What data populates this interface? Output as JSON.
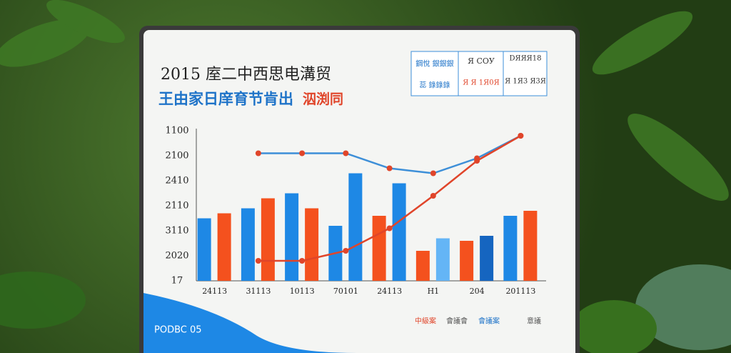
{
  "board": {
    "title": "2015 庢二中西思电溝贸",
    "subtitle_blue": "王由家日庠育节肯出",
    "subtitle_red": "泅渕同",
    "legend_boxes": [
      "鋼悅 銀銀銀",
      "Я СОУ",
      "DЯЯЯ18",
      "蕊 錄錄錄",
      "Я Я 1Я0Я",
      "Я 1Я3 Я3Я"
    ],
    "footer": "PODBC 05",
    "footer_legend": [
      "中級案",
      "會議會",
      "會議案",
      "意議"
    ]
  },
  "chart_data": {
    "type": "bar",
    "categories": [
      "2411З",
      "3111З",
      "1011З",
      "70101",
      "2411З",
      "Н1",
      "204",
      "20111З"
    ],
    "ylim": [
      0,
      6
    ],
    "yticks": [
      {
        "value": 0,
        "label": "17"
      },
      {
        "value": 1,
        "label": "2020"
      },
      {
        "value": 2,
        "label": "3110"
      },
      {
        "value": 3,
        "label": "2110"
      },
      {
        "value": 4,
        "label": "2410"
      },
      {
        "value": 5,
        "label": "2100"
      },
      {
        "value": 6,
        "label": "1100"
      }
    ],
    "grid": false,
    "series": [
      {
        "colors": [
          "#1e88e5",
          "#1e88e5",
          "#1e88e5",
          "#1e88e5",
          "#f4511e",
          "#f4511e",
          "#f4511e",
          "#1e88e5"
        ],
        "values": [
          2.5,
          2.9,
          3.5,
          2.2,
          2.6,
          1.2,
          1.6,
          2.6
        ]
      },
      {
        "colors": [
          "#f4511e",
          "#f4511e",
          "#f4511e",
          "#1e88e5",
          "#1e88e5",
          "#64b5f6",
          "#1565c0",
          "#f4511e"
        ],
        "values": [
          2.7,
          3.3,
          2.9,
          4.3,
          3.9,
          1.7,
          1.8,
          2.8
        ]
      }
    ],
    "lines": [
      {
        "color": "#3d8fd8",
        "values": [
          null,
          5.1,
          5.1,
          5.1,
          4.5,
          4.3,
          4.9,
          5.8
        ]
      },
      {
        "color": "#e0452a",
        "values": [
          null,
          0.8,
          0.8,
          1.2,
          2.1,
          3.4,
          4.8,
          5.8
        ]
      }
    ]
  }
}
